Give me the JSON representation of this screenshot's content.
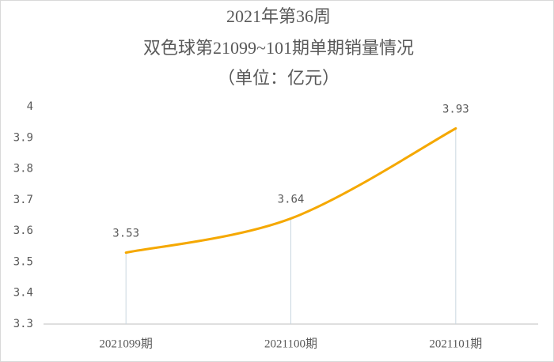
{
  "chart_data": {
    "type": "line",
    "title": [
      "2021年第36周",
      "双色球第21099~101期单期销量情况"
    ],
    "subtitle": "（单位：亿元）",
    "categories": [
      "2021099期",
      "2021100期",
      "2021101期"
    ],
    "series": [
      {
        "name": "销量",
        "color": "#f5a800",
        "values": [
          3.53,
          3.64,
          3.93
        ]
      }
    ],
    "ylim": [
      3.3,
      4
    ],
    "yticks": [
      3.3,
      3.4,
      3.5,
      3.6,
      3.7,
      3.8,
      3.9,
      4
    ],
    "grid": false,
    "smooth": true
  }
}
